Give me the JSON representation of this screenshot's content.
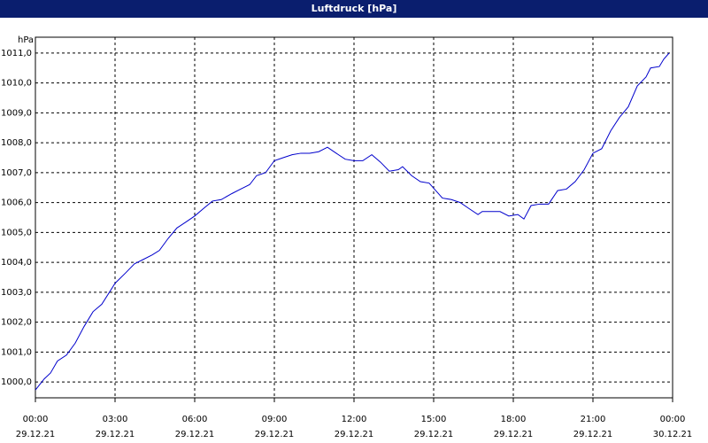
{
  "chart_data": {
    "type": "line",
    "title": "Luftdruck [hPa]",
    "y_label": "hPa",
    "x": [
      0,
      0.33,
      0.57,
      0.83,
      1.17,
      1.5,
      1.83,
      2.17,
      2.5,
      3,
      3.4,
      3.73,
      4.07,
      4.4,
      4.67,
      5,
      5.33,
      5.67,
      6,
      6.33,
      6.67,
      7,
      7.4,
      7.73,
      8.07,
      8.33,
      8.67,
      9,
      9.33,
      9.67,
      10,
      10.33,
      10.67,
      11,
      11.33,
      11.67,
      12,
      12.33,
      12.67,
      13,
      13.33,
      13.67,
      13.83,
      14.17,
      14.5,
      14.83,
      15.33,
      15.67,
      16,
      16.33,
      16.67,
      16.83,
      17.17,
      17.5,
      17.83,
      18.17,
      18.4,
      18.67,
      19,
      19.33,
      19.67,
      20,
      20.33,
      20.67,
      21,
      21.33,
      21.67,
      22,
      22.33,
      22.67,
      23,
      23.17,
      23.5,
      23.67,
      23.87
    ],
    "series": [
      {
        "name": "Luftdruck",
        "color": "#0000cc",
        "values": [
          999.73,
          1000.1,
          1000.3,
          1000.7,
          1000.9,
          1001.3,
          1001.85,
          1002.35,
          1002.6,
          1003.3,
          1003.65,
          1003.95,
          1004.1,
          1004.25,
          1004.4,
          1004.8,
          1005.15,
          1005.35,
          1005.55,
          1005.8,
          1006.05,
          1006.1,
          1006.3,
          1006.45,
          1006.6,
          1006.9,
          1007.0,
          1007.4,
          1007.5,
          1007.6,
          1007.65,
          1007.65,
          1007.7,
          1007.85,
          1007.65,
          1007.45,
          1007.4,
          1007.4,
          1007.6,
          1007.35,
          1007.05,
          1007.1,
          1007.2,
          1006.9,
          1006.7,
          1006.65,
          1006.15,
          1006.1,
          1006.0,
          1005.8,
          1005.6,
          1005.7,
          1005.7,
          1005.7,
          1005.55,
          1005.6,
          1005.45,
          1005.9,
          1005.95,
          1005.95,
          1006.4,
          1006.45,
          1006.7,
          1007.1,
          1007.65,
          1007.8,
          1008.4,
          1008.85,
          1009.2,
          1009.9,
          1010.2,
          1010.5,
          1010.55,
          1010.8,
          1011.0
        ]
      }
    ],
    "xlim": [
      0,
      24
    ],
    "xticks": [
      {
        "value": 0,
        "label": "00:00"
      },
      {
        "value": 3,
        "label": "03:00"
      },
      {
        "value": 6,
        "label": "06:00"
      },
      {
        "value": 9,
        "label": "09:00"
      },
      {
        "value": 12,
        "label": "12:00"
      },
      {
        "value": 15,
        "label": "15:00"
      },
      {
        "value": 18,
        "label": "18:00"
      },
      {
        "value": 21,
        "label": "21:00"
      },
      {
        "value": 24,
        "label": "00:00"
      }
    ],
    "xtick_dates": [
      "29.12.21",
      "29.12.21",
      "29.12.21",
      "29.12.21",
      "29.12.21",
      "29.12.21",
      "29.12.21",
      "29.12.21",
      "30.12.21"
    ],
    "ylim": [
      999.47,
      1011.53
    ],
    "yticks": [
      {
        "value": 1000,
        "label": "1000,0"
      },
      {
        "value": 1001,
        "label": "1001,0"
      },
      {
        "value": 1002,
        "label": "1002,0"
      },
      {
        "value": 1003,
        "label": "1003,0"
      },
      {
        "value": 1004,
        "label": "1004,0"
      },
      {
        "value": 1005,
        "label": "1005,0"
      },
      {
        "value": 1006,
        "label": "1006,0"
      },
      {
        "value": 1007,
        "label": "1007,0"
      },
      {
        "value": 1008,
        "label": "1008,0"
      },
      {
        "value": 1009,
        "label": "1009,0"
      },
      {
        "value": 1010,
        "label": "1010,0"
      },
      {
        "value": 1011,
        "label": "1011,0"
      }
    ],
    "grid": true
  }
}
